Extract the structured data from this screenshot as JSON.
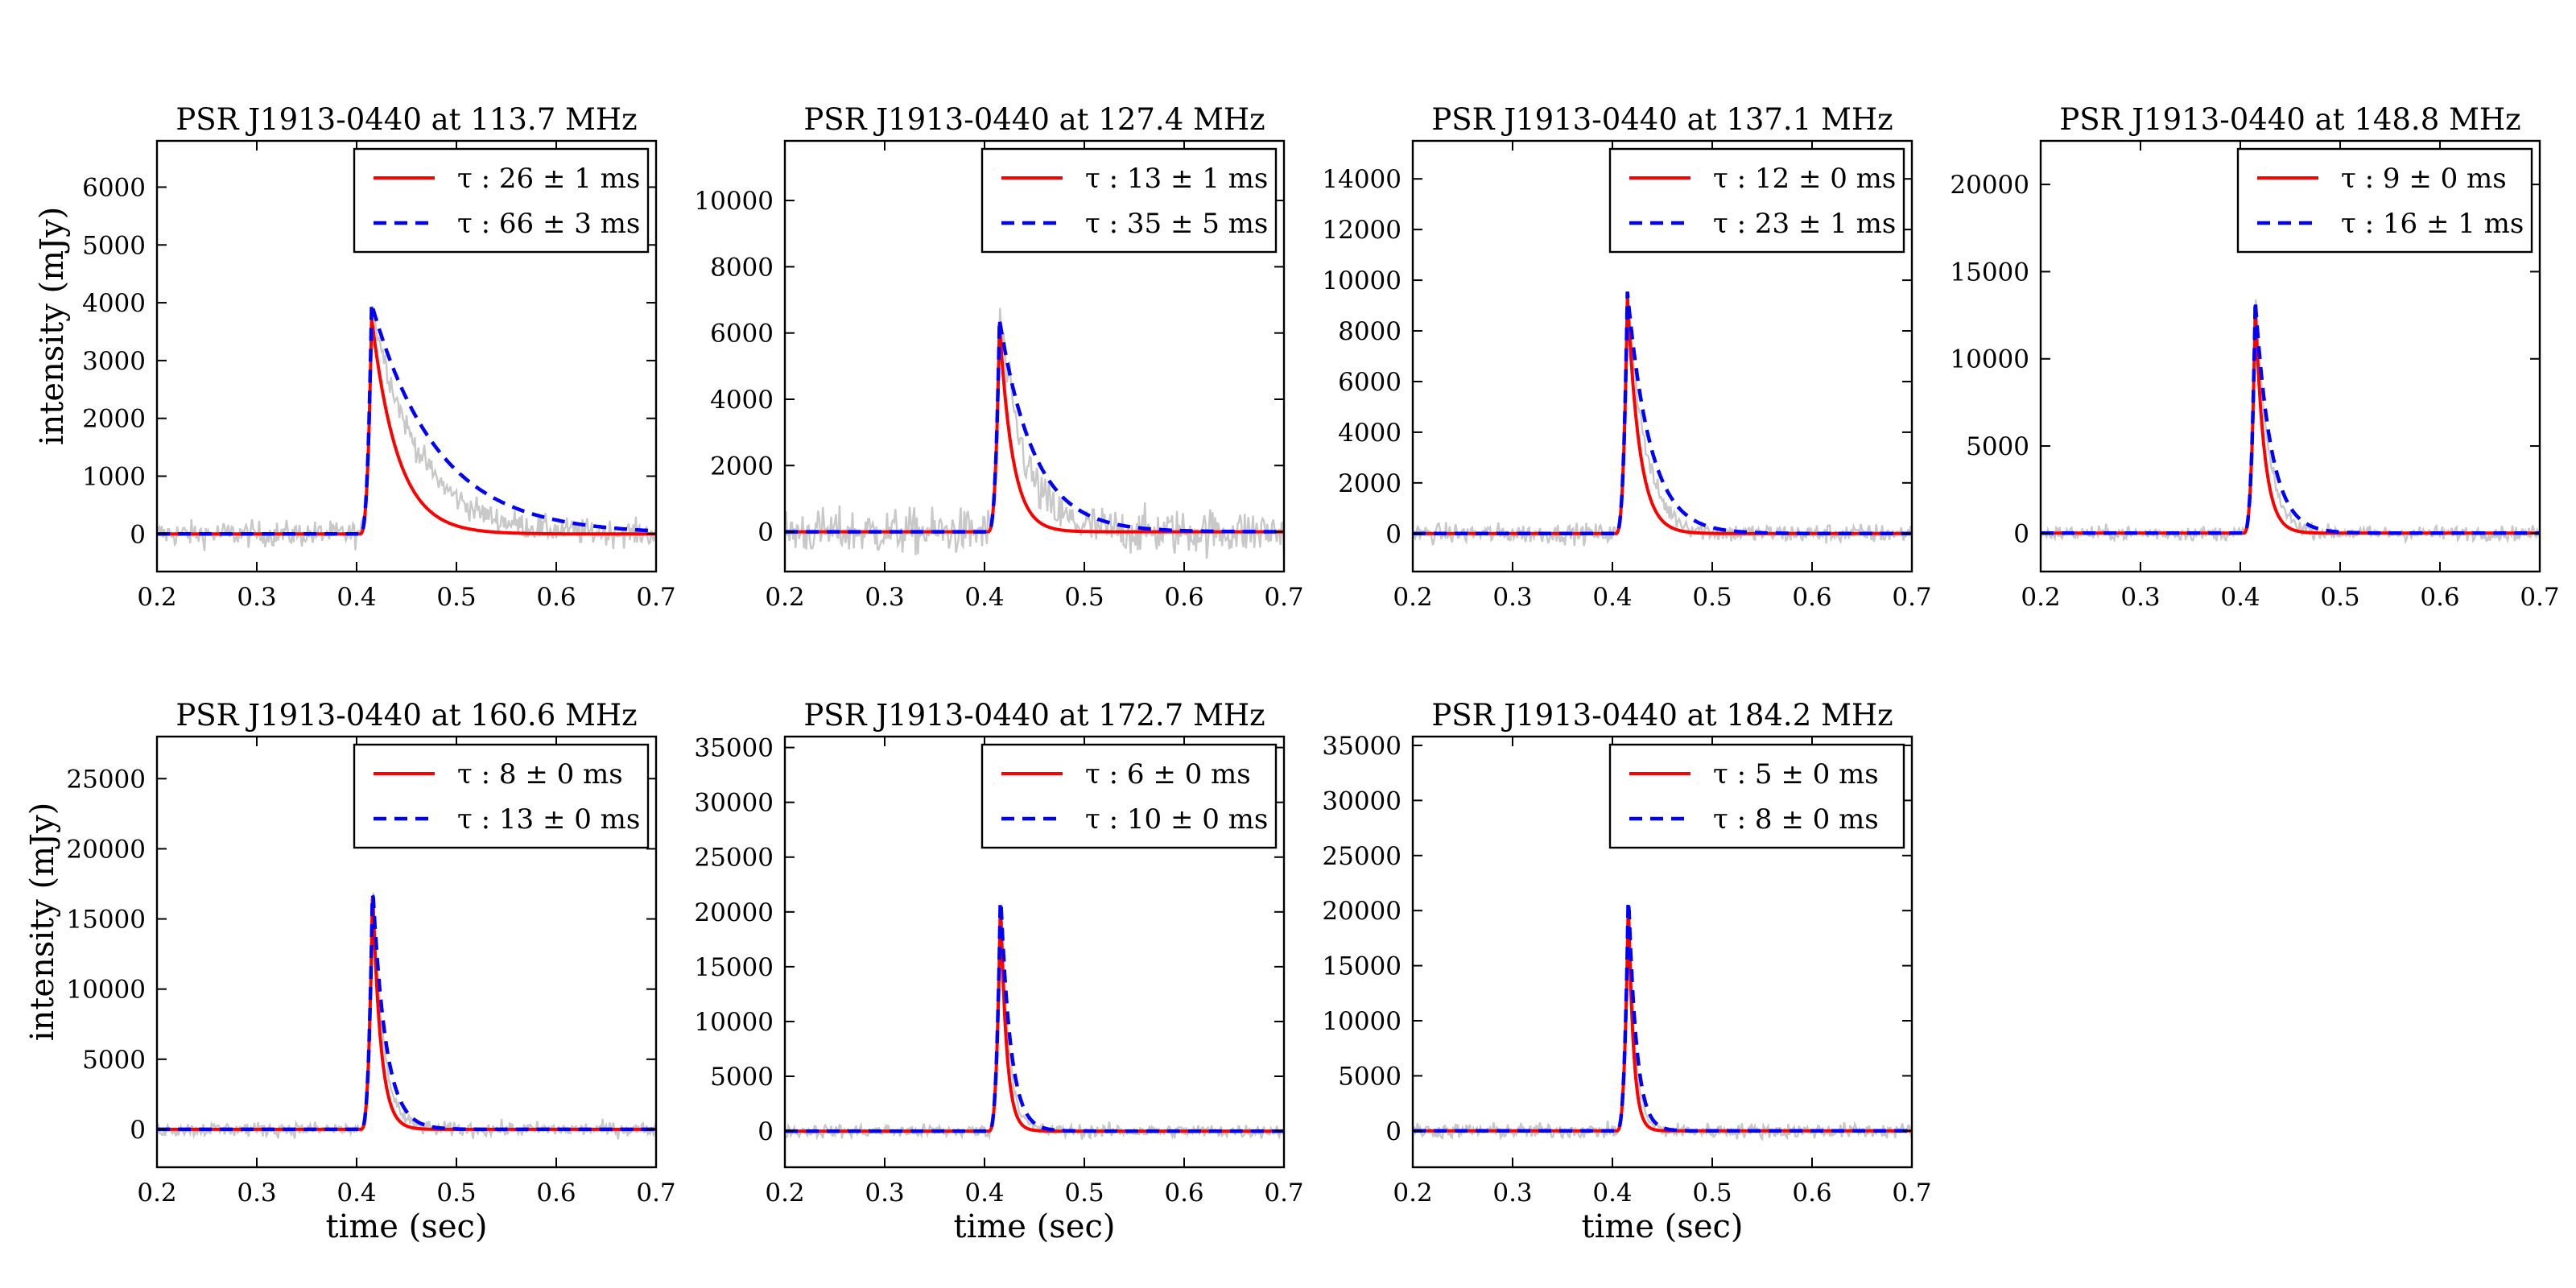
{
  "figure": {
    "xlabel": "time (sec)",
    "ylabel": "intensity (mJy)"
  },
  "chart_data": [
    {
      "type": "line",
      "title": "PSR J1913-0440 at 113.7 MHz",
      "xlim": [
        0.2,
        0.7
      ],
      "ylim": [
        -650,
        6800
      ],
      "xticks": [
        0.2,
        0.3,
        0.4,
        0.5,
        0.6,
        0.7
      ],
      "yticks": [
        0,
        1000,
        2000,
        3000,
        4000,
        5000,
        6000
      ],
      "peak_time": 0.415,
      "data_peak": 4000,
      "noise_sigma": 160,
      "legend": "top-right",
      "series": [
        {
          "name": "τ : 26 ± 1 ms",
          "style": "solid",
          "color": "#ff0000",
          "tau_ms": 26,
          "peak": 3750
        },
        {
          "name": "τ : 66 ± 3 ms",
          "style": "dashed",
          "color": "#0000ff",
          "tau_ms": 66,
          "peak": 3980
        }
      ]
    },
    {
      "type": "line",
      "title": "PSR J1913-0440 at 127.4 MHz",
      "xlim": [
        0.2,
        0.7
      ],
      "ylim": [
        -1200,
        11800
      ],
      "xticks": [
        0.2,
        0.3,
        0.4,
        0.5,
        0.6,
        0.7
      ],
      "yticks": [
        0,
        2000,
        4000,
        6000,
        8000,
        10000
      ],
      "peak_time": 0.415,
      "data_peak": 6500,
      "noise_sigma": 500,
      "legend": "top-right",
      "series": [
        {
          "name": "τ : 13 ± 1 ms",
          "style": "solid",
          "color": "#ff0000",
          "tau_ms": 13,
          "peak": 6300
        },
        {
          "name": "τ : 35 ± 5 ms",
          "style": "dashed",
          "color": "#0000ff",
          "tau_ms": 35,
          "peak": 6400
        }
      ]
    },
    {
      "type": "line",
      "title": "PSR J1913-0440 at 137.1 MHz",
      "xlim": [
        0.2,
        0.7
      ],
      "ylim": [
        -1500,
        15500
      ],
      "xticks": [
        0.2,
        0.3,
        0.4,
        0.5,
        0.6,
        0.7
      ],
      "yticks": [
        0,
        2000,
        4000,
        6000,
        8000,
        10000,
        12000,
        14000
      ],
      "peak_time": 0.415,
      "data_peak": 9700,
      "noise_sigma": 280,
      "legend": "top-right",
      "series": [
        {
          "name": "τ : 12 ± 0 ms",
          "style": "solid",
          "color": "#ff0000",
          "tau_ms": 12,
          "peak": 9400
        },
        {
          "name": "τ : 23 ± 1 ms",
          "style": "dashed",
          "color": "#0000ff",
          "tau_ms": 23,
          "peak": 9550
        }
      ]
    },
    {
      "type": "line",
      "title": "PSR J1913-0440 at 148.8 MHz",
      "xlim": [
        0.2,
        0.7
      ],
      "ylim": [
        -2200,
        22500
      ],
      "xticks": [
        0.2,
        0.3,
        0.4,
        0.5,
        0.6,
        0.7
      ],
      "yticks": [
        0,
        5000,
        10000,
        15000,
        20000
      ],
      "peak_time": 0.415,
      "data_peak": 13800,
      "noise_sigma": 300,
      "legend": "top-right",
      "series": [
        {
          "name": "τ : 9 ± 0 ms",
          "style": "solid",
          "color": "#ff0000",
          "tau_ms": 9,
          "peak": 13000
        },
        {
          "name": "τ : 16 ± 1 ms",
          "style": "dashed",
          "color": "#0000ff",
          "tau_ms": 16,
          "peak": 13300
        }
      ]
    },
    {
      "type": "line",
      "title": "PSR J1913-0440 at 160.6 MHz",
      "xlim": [
        0.2,
        0.7
      ],
      "ylim": [
        -2700,
        28000
      ],
      "xticks": [
        0.2,
        0.3,
        0.4,
        0.5,
        0.6,
        0.7
      ],
      "yticks": [
        0,
        5000,
        10000,
        15000,
        20000,
        25000
      ],
      "peak_time": 0.416,
      "data_peak": 17600,
      "noise_sigma": 380,
      "legend": "top-right",
      "series": [
        {
          "name": "τ : 8 ± 0 ms",
          "style": "solid",
          "color": "#ff0000",
          "tau_ms": 8,
          "peak": 17200
        },
        {
          "name": "τ : 13 ± 0 ms",
          "style": "dashed",
          "color": "#0000ff",
          "tau_ms": 13,
          "peak": 17400
        }
      ]
    },
    {
      "type": "line",
      "title": "PSR J1913-0440 at 172.7 MHz",
      "xlim": [
        0.2,
        0.7
      ],
      "ylim": [
        -3300,
        36000
      ],
      "xticks": [
        0.2,
        0.3,
        0.4,
        0.5,
        0.6,
        0.7
      ],
      "yticks": [
        0,
        5000,
        10000,
        15000,
        20000,
        25000,
        30000,
        35000
      ],
      "peak_time": 0.416,
      "data_peak": 22300,
      "noise_sigma": 450,
      "legend": "top-right",
      "series": [
        {
          "name": "τ : 6 ± 0 ms",
          "style": "solid",
          "color": "#ff0000",
          "tau_ms": 6,
          "peak": 21300
        },
        {
          "name": "τ : 10 ± 0 ms",
          "style": "dashed",
          "color": "#0000ff",
          "tau_ms": 10,
          "peak": 21800
        }
      ]
    },
    {
      "type": "line",
      "title": "PSR J1913-0440 at 184.2 MHz",
      "xlim": [
        0.2,
        0.7
      ],
      "ylim": [
        -3300,
        35800
      ],
      "xticks": [
        0.2,
        0.3,
        0.4,
        0.5,
        0.6,
        0.7
      ],
      "yticks": [
        0,
        5000,
        10000,
        15000,
        20000,
        25000,
        30000,
        35000
      ],
      "peak_time": 0.416,
      "data_peak": 22200,
      "noise_sigma": 500,
      "legend": "top-right",
      "series": [
        {
          "name": "τ : 5 ± 0 ms",
          "style": "solid",
          "color": "#ff0000",
          "tau_ms": 5,
          "peak": 21200
        },
        {
          "name": "τ : 8 ± 0 ms",
          "style": "dashed",
          "color": "#0000ff",
          "tau_ms": 8,
          "peak": 21700
        }
      ]
    }
  ]
}
